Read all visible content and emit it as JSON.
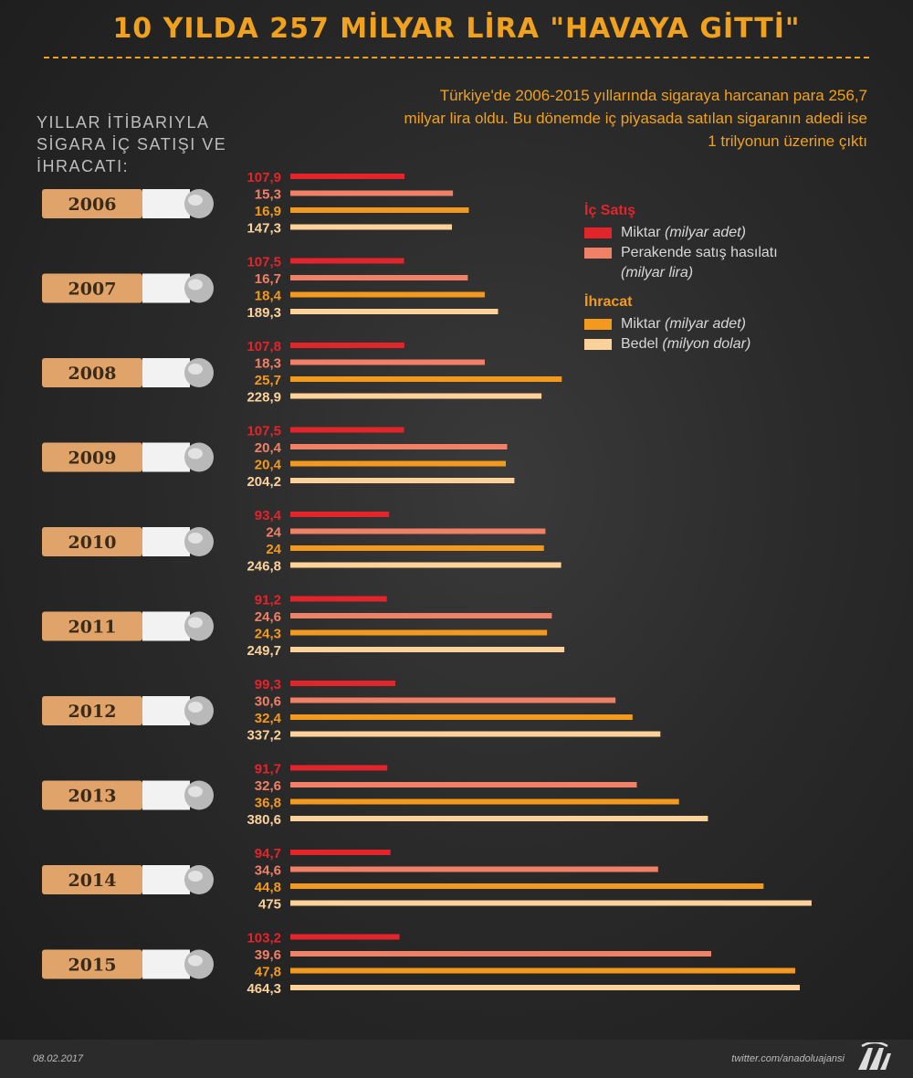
{
  "title": "10 YILDA 257 MİLYAR LİRA \"HAVAYA GİTTİ\"",
  "intro": "Türkiye'de 2006-2015 yıllarında sigaraya harcanan para 256,7 milyar lira oldu. Bu dönemde iç piyasada satılan sigaranın adedi ise 1 trilyonun üzerine çıktı",
  "subtitle": "YILLAR İTİBARIYLA SİGARA İÇ SATIŞI VE İHRACATI:",
  "legend": {
    "ic_satis": "İç Satış",
    "ic_miktar": "Miktar",
    "ic_miktar_unit": "(milyar adet)",
    "ic_hasilat": "Perakende satış hasılatı",
    "ic_hasilat_unit": "(milyar lira)",
    "ihracat": "İhracat",
    "ih_miktar": "Miktar",
    "ih_miktar_unit": "(milyar adet)",
    "ih_bedel": "Bedel",
    "ih_bedel_unit": "(milyon dolar)"
  },
  "colors": {
    "accent": "#f0a21e",
    "ic_miktar": "#e3242b",
    "ic_hasilat": "#f08066",
    "ih_miktar": "#f39a1e",
    "ih_bedel": "#fcd29a",
    "filter": "#e0a36a"
  },
  "footer": {
    "date": "08.02.2017",
    "handle": "twitter.com/anadoluajansi",
    "logo": "AA"
  },
  "chart_data": {
    "type": "bar",
    "orientation": "horizontal",
    "categories": [
      "2006",
      "2007",
      "2008",
      "2009",
      "2010",
      "2011",
      "2012",
      "2013",
      "2014",
      "2015"
    ],
    "value_labels": {
      "ic_miktar": [
        "107,9",
        "107,5",
        "107,8",
        "107,5",
        "93,4",
        "91,2",
        "99,3",
        "91,7",
        "94,7",
        "103,2"
      ],
      "ic_hasilat": [
        "15,3",
        "16,7",
        "18,3",
        "20,4",
        "24",
        "24,6",
        "30,6",
        "32,6",
        "34,6",
        "39,6"
      ],
      "ih_miktar": [
        "16,9",
        "18,4",
        "25,7",
        "20,4",
        "24",
        "24,3",
        "32,4",
        "36,8",
        "44,8",
        "47,8"
      ],
      "ih_bedel": [
        "147,3",
        "189,3",
        "228,9",
        "204,2",
        "246,8",
        "249,7",
        "337,2",
        "380,6",
        "475",
        "464,3"
      ]
    },
    "series": [
      {
        "key": "ic_miktar",
        "name": "Miktar",
        "values": [
          107.9,
          107.5,
          107.8,
          107.5,
          93.4,
          91.2,
          99.3,
          91.7,
          94.7,
          103.2
        ],
        "color": "#e3242b"
      },
      {
        "key": "ic_hasilat",
        "name": "Perakende satış hasılatı",
        "values": [
          15.3,
          16.7,
          18.3,
          20.4,
          24,
          24.6,
          30.6,
          32.6,
          34.6,
          39.6
        ],
        "color": "#f08066"
      },
      {
        "key": "ih_miktar",
        "name": "Miktar",
        "values": [
          16.9,
          18.4,
          25.7,
          20.4,
          24,
          24.3,
          32.4,
          36.8,
          44.8,
          47.8
        ],
        "color": "#f39a1e"
      },
      {
        "key": "ih_bedel",
        "name": "Bedel",
        "values": [
          147.3,
          189.3,
          228.9,
          204.2,
          246.8,
          249.7,
          337.2,
          380.6,
          475,
          464.3
        ],
        "color": "#fcd29a"
      }
    ]
  }
}
